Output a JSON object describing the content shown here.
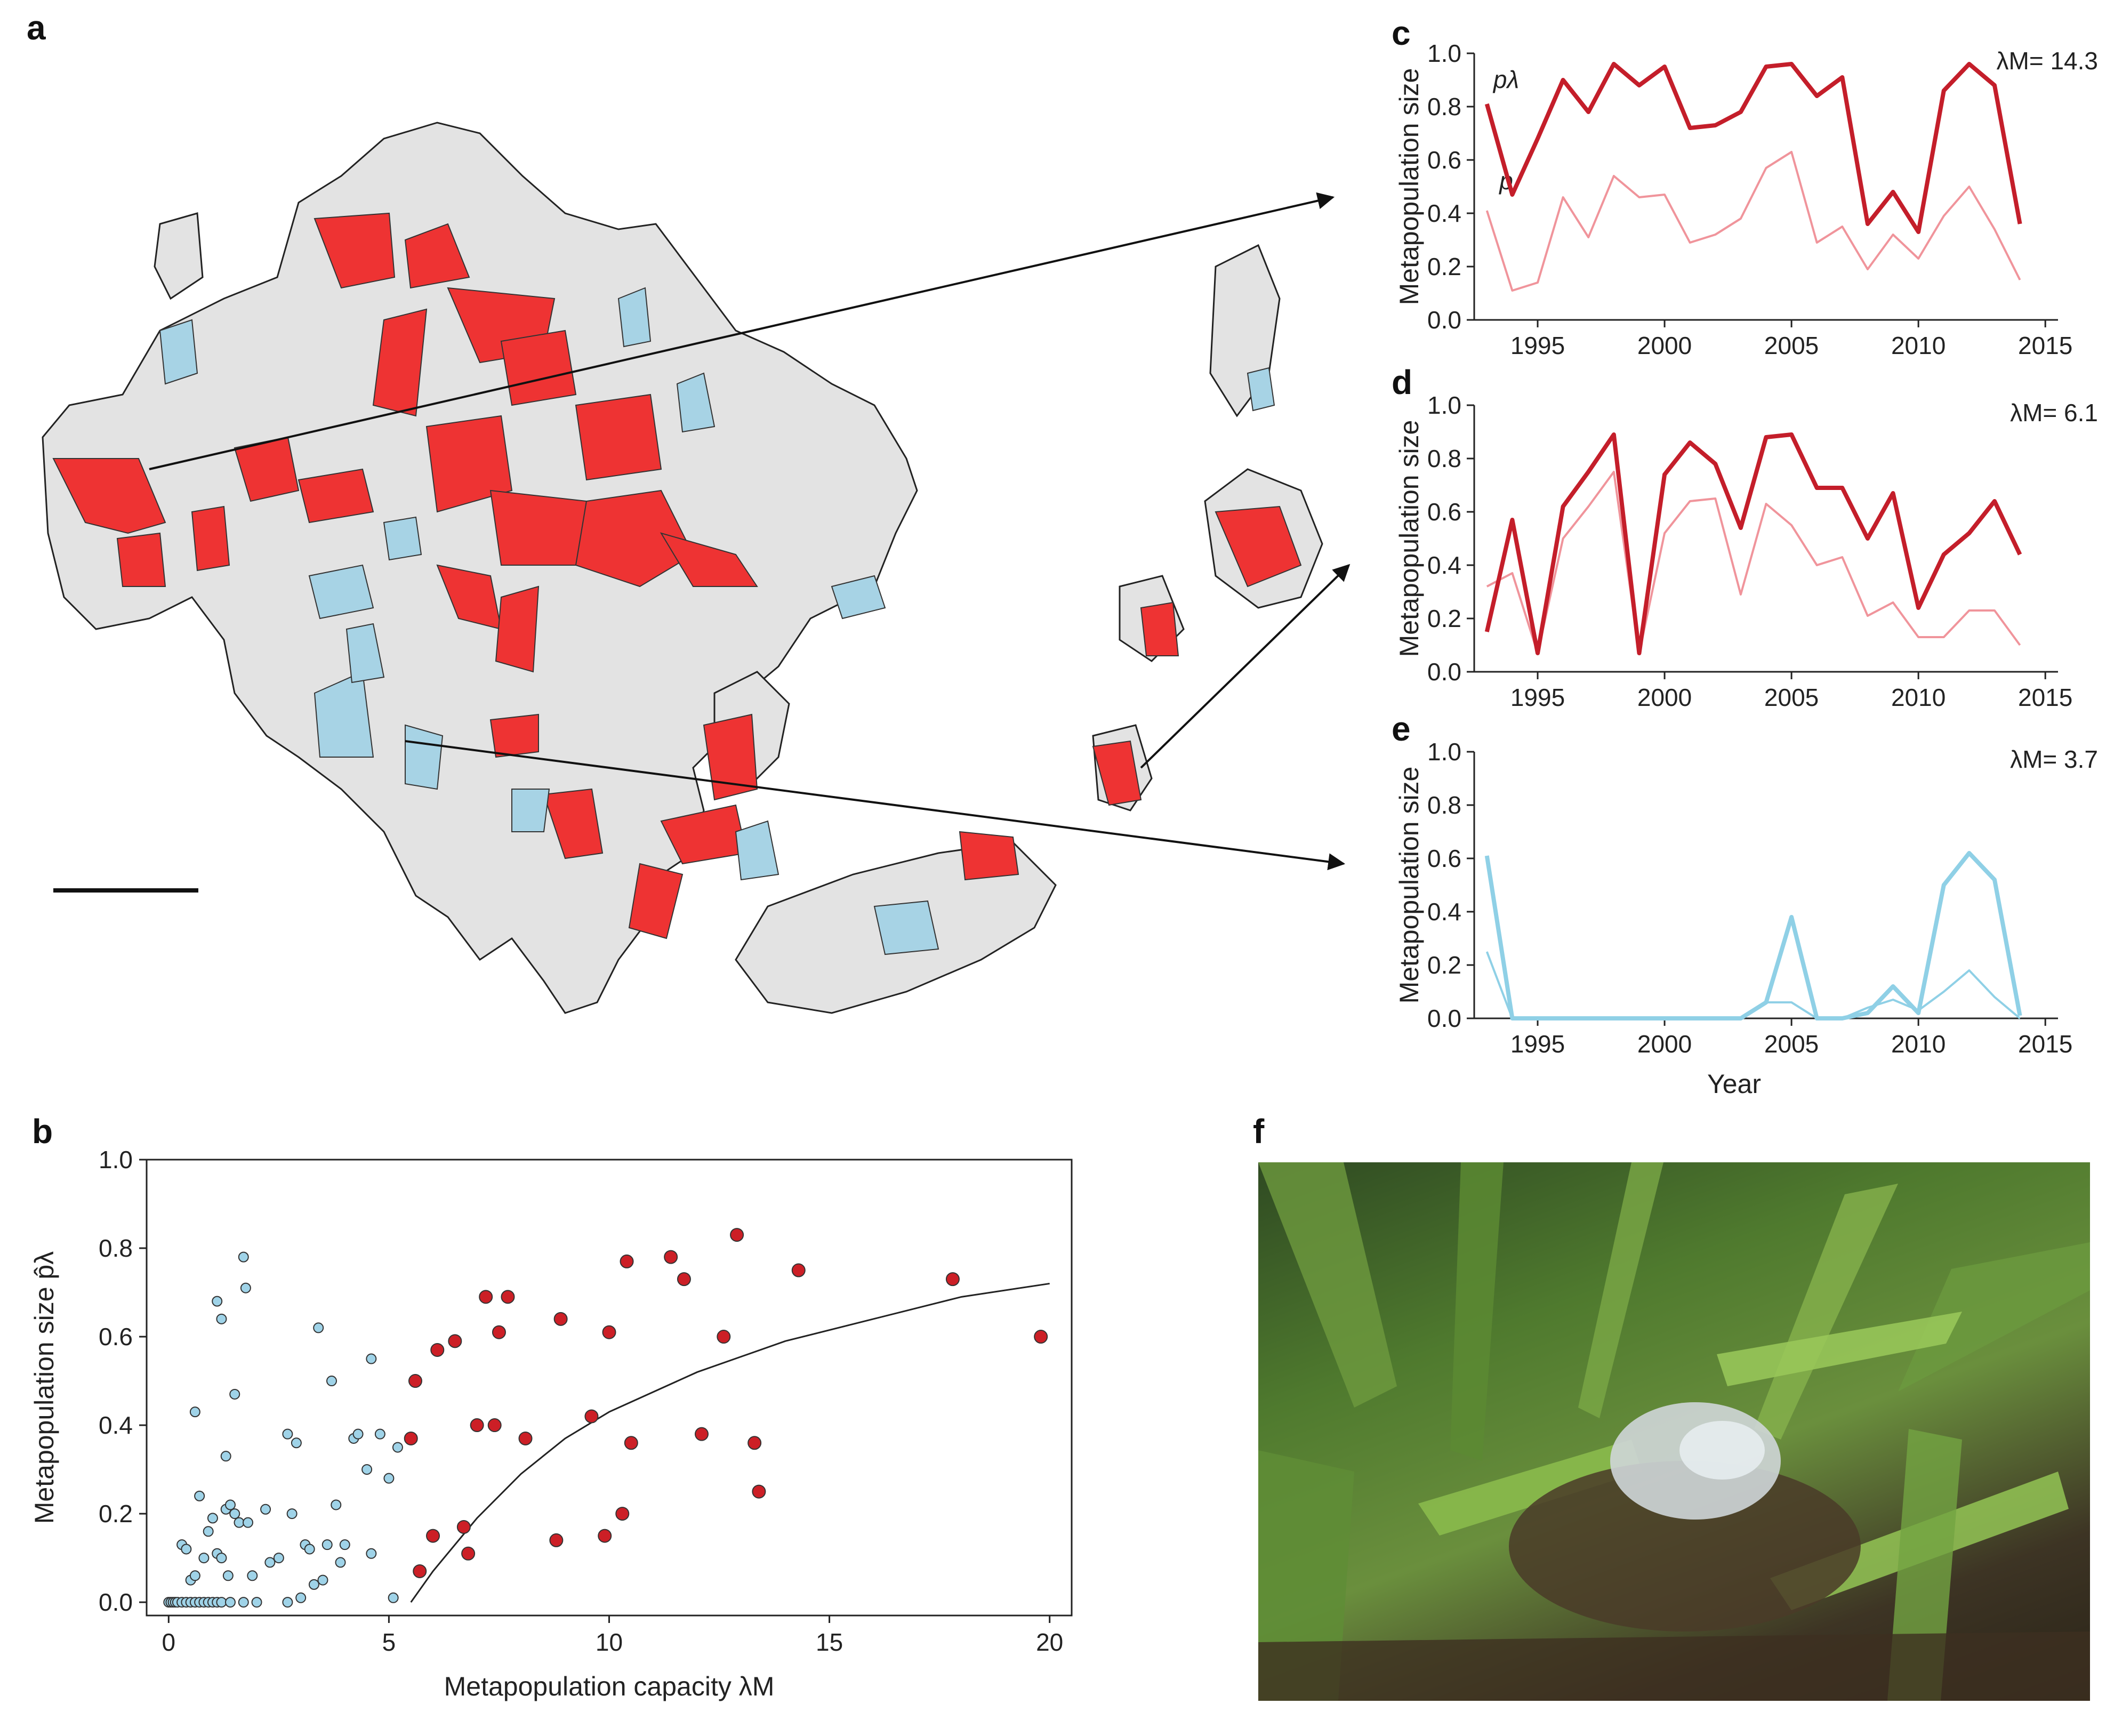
{
  "panels": {
    "a": "a",
    "b": "b",
    "c": "c",
    "d": "d",
    "e": "e",
    "f": "f"
  },
  "colors": {
    "red_fill": "#ee3333",
    "blue_fill": "#a7d3e5",
    "gray_fill": "#e3e3e3",
    "dark_red": "#c41e2a",
    "pink": "#f0949b",
    "light_blue": "#8fd0e6",
    "red_point": "#cc1f26",
    "blue_point": "#9fd3e8"
  },
  "map": {
    "has_scale_bar": true
  },
  "chart_data": [
    {
      "id": "b",
      "type": "scatter",
      "xlabel": "Metapopulation capacity λM",
      "ylabel": "Metapopulation size p̂λ",
      "xlim": [
        -0.5,
        20.5
      ],
      "ylim": [
        0.0,
        1.0
      ],
      "xticks": [
        "0",
        "5",
        "10",
        "15",
        "20"
      ],
      "yticks": [
        "0.0",
        "0.2",
        "0.4",
        "0.6",
        "0.8",
        "1.0"
      ],
      "series": [
        {
          "color": "blue",
          "points": [
            [
              0.0,
              0.0
            ],
            [
              0.05,
              0.0
            ],
            [
              0.1,
              0.0
            ],
            [
              0.15,
              0.0
            ],
            [
              0.2,
              0.0
            ],
            [
              0.3,
              0.0
            ],
            [
              0.4,
              0.0
            ],
            [
              0.5,
              0.0
            ],
            [
              0.6,
              0.0
            ],
            [
              0.7,
              0.0
            ],
            [
              0.8,
              0.0
            ],
            [
              0.9,
              0.0
            ],
            [
              1.0,
              0.0
            ],
            [
              1.1,
              0.0
            ],
            [
              1.2,
              0.0
            ],
            [
              1.4,
              0.0
            ],
            [
              1.7,
              0.0
            ],
            [
              2.0,
              0.0
            ],
            [
              2.7,
              0.0
            ],
            [
              0.3,
              0.13
            ],
            [
              0.4,
              0.12
            ],
            [
              0.5,
              0.05
            ],
            [
              0.6,
              0.06
            ],
            [
              0.7,
              0.24
            ],
            [
              0.6,
              0.43
            ],
            [
              0.8,
              0.1
            ],
            [
              0.9,
              0.16
            ],
            [
              1.0,
              0.19
            ],
            [
              1.1,
              0.11
            ],
            [
              1.1,
              0.68
            ],
            [
              1.2,
              0.64
            ],
            [
              1.2,
              0.1
            ],
            [
              1.3,
              0.21
            ],
            [
              1.3,
              0.33
            ],
            [
              1.35,
              0.06
            ],
            [
              1.4,
              0.22
            ],
            [
              1.5,
              0.2
            ],
            [
              1.5,
              0.47
            ],
            [
              1.6,
              0.18
            ],
            [
              1.7,
              0.78
            ],
            [
              1.75,
              0.71
            ],
            [
              1.8,
              0.18
            ],
            [
              1.9,
              0.06
            ],
            [
              2.2,
              0.21
            ],
            [
              2.3,
              0.09
            ],
            [
              2.5,
              0.1
            ],
            [
              2.7,
              0.38
            ],
            [
              2.8,
              0.2
            ],
            [
              2.9,
              0.36
            ],
            [
              3.0,
              0.01
            ],
            [
              3.1,
              0.13
            ],
            [
              3.2,
              0.12
            ],
            [
              3.3,
              0.04
            ],
            [
              3.4,
              0.62
            ],
            [
              3.5,
              0.05
            ],
            [
              3.6,
              0.13
            ],
            [
              3.7,
              0.5
            ],
            [
              3.8,
              0.22
            ],
            [
              3.9,
              0.09
            ],
            [
              4.0,
              0.13
            ],
            [
              4.2,
              0.37
            ],
            [
              4.3,
              0.38
            ],
            [
              4.5,
              0.3
            ],
            [
              4.6,
              0.11
            ],
            [
              4.6,
              0.55
            ],
            [
              4.8,
              0.38
            ],
            [
              5.0,
              0.28
            ],
            [
              5.2,
              0.35
            ],
            [
              5.1,
              0.01
            ]
          ]
        },
        {
          "color": "red",
          "points": [
            [
              5.5,
              0.37
            ],
            [
              5.6,
              0.5
            ],
            [
              5.7,
              0.07
            ],
            [
              6.0,
              0.15
            ],
            [
              6.1,
              0.57
            ],
            [
              6.5,
              0.59
            ],
            [
              6.7,
              0.17
            ],
            [
              6.8,
              0.11
            ],
            [
              7.0,
              0.4
            ],
            [
              7.2,
              0.69
            ],
            [
              7.4,
              0.4
            ],
            [
              7.5,
              0.61
            ],
            [
              7.7,
              0.69
            ],
            [
              8.1,
              0.37
            ],
            [
              8.8,
              0.14
            ],
            [
              8.9,
              0.64
            ],
            [
              9.6,
              0.42
            ],
            [
              9.9,
              0.15
            ],
            [
              10.0,
              0.61
            ],
            [
              10.3,
              0.2
            ],
            [
              10.4,
              0.77
            ],
            [
              10.5,
              0.36
            ],
            [
              11.4,
              0.78
            ],
            [
              11.7,
              0.73
            ],
            [
              12.1,
              0.38
            ],
            [
              12.6,
              0.6
            ],
            [
              12.9,
              0.83
            ],
            [
              13.3,
              0.36
            ],
            [
              13.4,
              0.25
            ],
            [
              14.3,
              0.75
            ],
            [
              17.8,
              0.73
            ],
            [
              19.8,
              0.6
            ]
          ]
        }
      ],
      "curve": {
        "x": [
          5.5,
          6,
          7,
          8,
          9,
          10,
          12,
          14,
          16,
          18,
          20
        ],
        "y": [
          0.0,
          0.07,
          0.19,
          0.29,
          0.37,
          0.43,
          0.52,
          0.59,
          0.64,
          0.69,
          0.72
        ]
      }
    },
    {
      "id": "c",
      "type": "line",
      "xlabel": "",
      "ylabel": "Metapopulation size",
      "lambda_label": "λM= 14.3",
      "x": [
        1993,
        1994,
        1995,
        1996,
        1997,
        1998,
        1999,
        2000,
        2001,
        2002,
        2003,
        2004,
        2005,
        2006,
        2007,
        2008,
        2009,
        2010,
        2011,
        2012,
        2013,
        2014
      ],
      "xticks": [
        "1995",
        "2000",
        "2005",
        "2010",
        "2015"
      ],
      "yticks": [
        "0.0",
        "0.2",
        "0.4",
        "0.6",
        "0.8",
        "1.0"
      ],
      "series": [
        {
          "name": "pλ",
          "color": "#c41e2a",
          "values": [
            0.81,
            0.47,
            0.68,
            0.9,
            0.78,
            0.96,
            0.88,
            0.95,
            0.72,
            0.73,
            0.78,
            0.95,
            0.96,
            0.84,
            0.91,
            0.36,
            0.48,
            0.33,
            0.86,
            0.96,
            0.88,
            0.36
          ]
        },
        {
          "name": "p",
          "color": "#f0949b",
          "values": [
            0.41,
            0.11,
            0.14,
            0.46,
            0.31,
            0.54,
            0.46,
            0.47,
            0.29,
            0.32,
            0.38,
            0.57,
            0.63,
            0.29,
            0.35,
            0.19,
            0.32,
            0.23,
            0.39,
            0.5,
            0.34,
            0.15
          ]
        }
      ]
    },
    {
      "id": "d",
      "type": "line",
      "xlabel": "",
      "ylabel": "Metapopulation size",
      "lambda_label": "λM= 6.1",
      "x": [
        1993,
        1994,
        1995,
        1996,
        1997,
        1998,
        1999,
        2000,
        2001,
        2002,
        2003,
        2004,
        2005,
        2006,
        2007,
        2008,
        2009,
        2010,
        2011,
        2012,
        2013,
        2014
      ],
      "xticks": [
        "1995",
        "2000",
        "2005",
        "2010",
        "2015"
      ],
      "yticks": [
        "0.0",
        "0.2",
        "0.4",
        "0.6",
        "0.8",
        "1.0"
      ],
      "series": [
        {
          "name": "",
          "color": "#c41e2a",
          "values": [
            0.15,
            0.57,
            0.07,
            0.62,
            0.75,
            0.89,
            0.07,
            0.74,
            0.86,
            0.78,
            0.54,
            0.88,
            0.89,
            0.69,
            0.69,
            0.5,
            0.67,
            0.24,
            0.44,
            0.52,
            0.64,
            0.44
          ]
        },
        {
          "name": "",
          "color": "#f0949b",
          "values": [
            0.32,
            0.37,
            0.07,
            0.5,
            0.62,
            0.75,
            0.07,
            0.52,
            0.64,
            0.65,
            0.29,
            0.63,
            0.55,
            0.4,
            0.43,
            0.21,
            0.26,
            0.13,
            0.13,
            0.23,
            0.23,
            0.1
          ]
        }
      ]
    },
    {
      "id": "e",
      "type": "line",
      "xlabel": "Year",
      "ylabel": "Metapopulation size",
      "lambda_label": "λM= 3.7",
      "x": [
        1993,
        1994,
        1995,
        1996,
        1997,
        1998,
        1999,
        2000,
        2001,
        2002,
        2003,
        2004,
        2005,
        2006,
        2007,
        2008,
        2009,
        2010,
        2011,
        2012,
        2013,
        2014
      ],
      "xticks": [
        "1995",
        "2000",
        "2005",
        "2010",
        "2015"
      ],
      "yticks": [
        "0.0",
        "0.2",
        "0.4",
        "0.6",
        "0.8",
        "1.0"
      ],
      "series": [
        {
          "name": "",
          "color": "#8fd0e6",
          "values": [
            0.61,
            0.0,
            0.0,
            0.0,
            0.0,
            0.0,
            0.0,
            0.0,
            0.0,
            0.0,
            0.0,
            0.06,
            0.38,
            0.0,
            0.0,
            0.02,
            0.12,
            0.02,
            0.5,
            0.62,
            0.52,
            0.01
          ]
        },
        {
          "name": "",
          "color": "#8fd0e6",
          "values": [
            0.25,
            0.0,
            0.0,
            0.0,
            0.0,
            0.0,
            0.0,
            0.0,
            0.0,
            0.0,
            0.0,
            0.06,
            0.06,
            0.0,
            0.0,
            0.04,
            0.07,
            0.03,
            0.1,
            0.18,
            0.08,
            0.0
          ]
        }
      ]
    }
  ]
}
